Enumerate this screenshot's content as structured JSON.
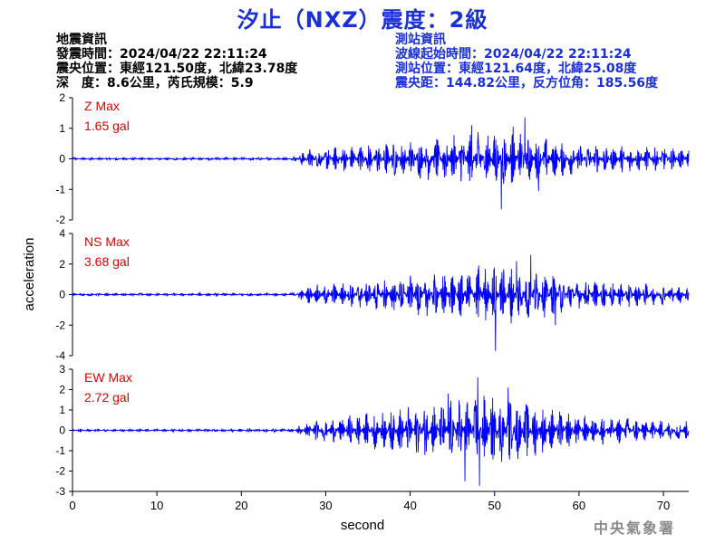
{
  "header": {
    "title": "汐止（NXZ）震度：2級"
  },
  "quake_info": {
    "heading": "地震資訊",
    "time": "發震時間：2024/04/22 22:11:24",
    "epicenter": "震央位置：東經121.50度，北緯23.78度",
    "depth_magnitude": "深　度：8.6公里，芮氏規模：5.9"
  },
  "station_info": {
    "heading": "測站資訊",
    "wave_start": "波線起始時間：2024/04/22 22:11:24",
    "location": "測站位置：東經121.64度，北緯25.08度",
    "distance": "震央距：144.82公里，反方位角：185.56度"
  },
  "watermark": "中央氣象署",
  "colors": {
    "title": "#1a2fd6",
    "trace": "#0000ff",
    "max_label": "#e00000",
    "station_text": "#1a2fd6"
  },
  "chart_data": {
    "type": "line",
    "xlabel": "second",
    "ylabel": "acceleration",
    "xlim": [
      0,
      73
    ],
    "xticks": [
      0,
      10,
      20,
      30,
      40,
      50,
      60,
      70
    ],
    "panels": [
      {
        "component": "Z",
        "max_label": "Z Max",
        "max_value": "1.65 gal",
        "ylim": [
          -2,
          2
        ],
        "yticks": [
          -2,
          -1,
          0,
          1,
          2
        ],
        "envelope": [
          [
            0,
            0.04
          ],
          [
            26,
            0.05
          ],
          [
            28,
            0.35
          ],
          [
            35,
            0.5
          ],
          [
            45,
            0.8
          ],
          [
            50,
            1.0
          ],
          [
            54,
            0.8
          ],
          [
            60,
            0.5
          ],
          [
            73,
            0.35
          ]
        ],
        "peaks": [
          [
            53.6,
            1.35
          ],
          [
            50.8,
            -1.65
          ],
          [
            47.3,
            1.1
          ],
          [
            55.2,
            -1.05
          ],
          [
            52.2,
            1.05
          ]
        ]
      },
      {
        "component": "NS",
        "max_label": "NS Max",
        "max_value": "3.68 gal",
        "ylim": [
          -4,
          4
        ],
        "yticks": [
          -4,
          -2,
          0,
          2,
          4
        ],
        "envelope": [
          [
            0,
            0.08
          ],
          [
            26,
            0.1
          ],
          [
            28,
            0.6
          ],
          [
            35,
            1.0
          ],
          [
            45,
            1.6
          ],
          [
            50,
            2.0
          ],
          [
            54,
            1.8
          ],
          [
            60,
            1.0
          ],
          [
            73,
            0.6
          ]
        ],
        "peaks": [
          [
            54.3,
            2.6
          ],
          [
            50.1,
            -3.68
          ],
          [
            48.1,
            1.9
          ],
          [
            52.6,
            2.2
          ],
          [
            57.2,
            -2.0
          ]
        ]
      },
      {
        "component": "EW",
        "max_label": "EW Max",
        "max_value": "2.72 gal",
        "ylim": [
          -3,
          3
        ],
        "yticks": [
          -3,
          -2,
          -1,
          0,
          1,
          2,
          3
        ],
        "envelope": [
          [
            0,
            0.06
          ],
          [
            26,
            0.08
          ],
          [
            28,
            0.45
          ],
          [
            35,
            0.9
          ],
          [
            45,
            1.5
          ],
          [
            49,
            1.8
          ],
          [
            53,
            1.5
          ],
          [
            60,
            0.8
          ],
          [
            73,
            0.45
          ]
        ],
        "peaks": [
          [
            48.0,
            2.6
          ],
          [
            48.2,
            -2.72
          ],
          [
            46.5,
            -2.5
          ],
          [
            51.6,
            2.1
          ],
          [
            44.5,
            1.8
          ]
        ]
      }
    ]
  }
}
